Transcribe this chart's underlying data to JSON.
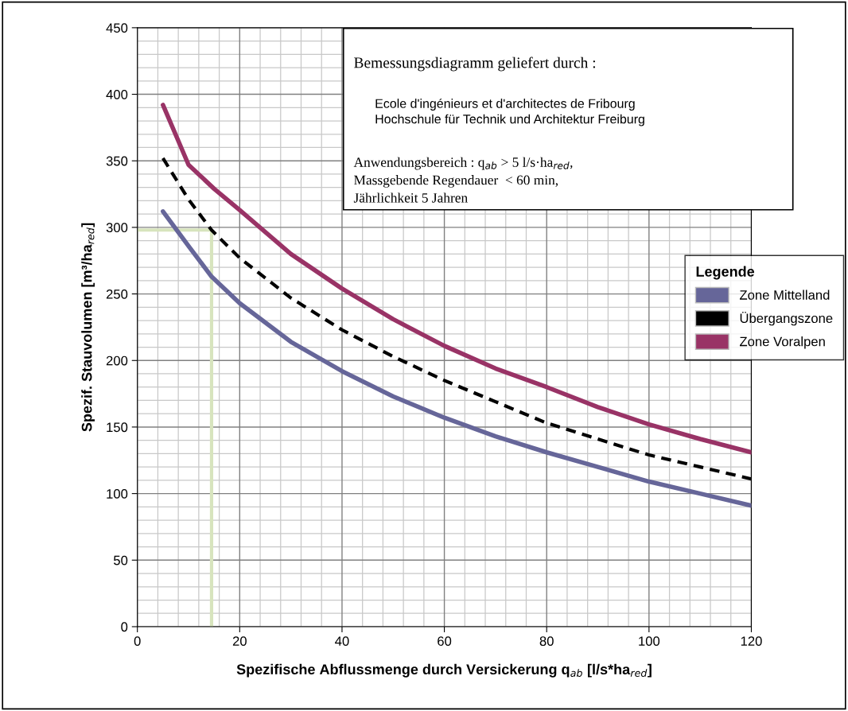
{
  "chart_data": {
    "type": "line",
    "xlabel": "Spezifische Abflussmenge durch Versickerung q$_{ab}$ [l/s*ha$_{red}$]",
    "ylabel": "Spezif. Stauvolumen [m³/ha$_{red}$]",
    "legend_title": "Legende",
    "xlim": [
      0,
      120
    ],
    "xticks": [
      0,
      20,
      40,
      60,
      80,
      100,
      120
    ],
    "ylim": [
      0,
      450
    ],
    "yticks": [
      0,
      50,
      100,
      150,
      200,
      250,
      300,
      350,
      400,
      450
    ],
    "grid": true,
    "legend": "right",
    "marker": "none",
    "annotations": [
      "Bemessungsdiagramm geliefert durch :",
      "Ecole d'ingénieurs et d'architectes de Fribourg",
      "Hochschule für Technik und Architektur Freiburg",
      "Anwendungsbereich : q$_{ab}$ > 5 l/s·ha$_{red}$,",
      "Massgebende Regendauer  < 60 min,",
      "Jährlichkeit 5 Jahren"
    ],
    "series": [
      {
        "name": "Zone Mittelland",
        "color": "#666699",
        "line_style": "solid",
        "x": [
          5,
          10,
          14.5,
          20,
          30,
          40,
          50,
          60,
          70,
          80,
          90,
          100,
          110,
          120
        ],
        "values": [
          312,
          286,
          263,
          243,
          214,
          192,
          173,
          157,
          143,
          131,
          120,
          109,
          100,
          91
        ]
      },
      {
        "name": "Übergangszone",
        "color": "#000000",
        "line_style": "dashed",
        "x": [
          5,
          10,
          14.5,
          20,
          30,
          40,
          50,
          60,
          70,
          80,
          90,
          100,
          110,
          120
        ],
        "values": [
          352,
          321,
          298,
          277,
          247,
          223,
          203,
          185,
          169,
          153,
          141,
          129,
          120,
          111
        ]
      },
      {
        "name": "Zone Voralpen",
        "color": "#993366",
        "line_style": "solid",
        "x": [
          5,
          10,
          15,
          20,
          30,
          40,
          50,
          60,
          70,
          80,
          90,
          100,
          110,
          120
        ],
        "values": [
          392,
          347,
          329,
          313,
          280,
          254,
          231,
          211,
          194,
          180,
          165,
          152,
          141,
          131
        ]
      },
      {
        "color": "#d7e4bd",
        "line_style": "solid",
        "x": [
          0,
          14.5,
          14.5
        ],
        "values": [
          298,
          298,
          0
        ]
      }
    ]
  }
}
